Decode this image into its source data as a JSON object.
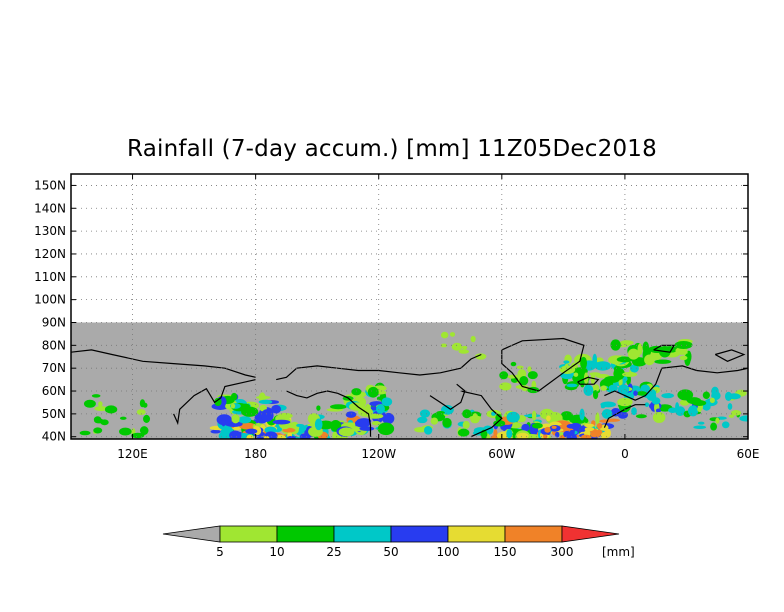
{
  "title": "Rainfall (7-day accum.) [mm] 11Z05Dec2018",
  "map": {
    "projection": "equirectangular",
    "lon_range": [
      90,
      420
    ],
    "lat_range": [
      39,
      155
    ],
    "data_lat_max": 90,
    "land_color": "#aaaaaa",
    "ocean_color": "#aaaaaa",
    "coastline_color": "#000000",
    "grid": true,
    "grid_style": "dotted",
    "lat_ticks": [
      {
        "value": 150,
        "label": "150N"
      },
      {
        "value": 140,
        "label": "140N"
      },
      {
        "value": 130,
        "label": "130N"
      },
      {
        "value": 120,
        "label": "120N"
      },
      {
        "value": 110,
        "label": "110N"
      },
      {
        "value": 100,
        "label": "100N"
      },
      {
        "value": 90,
        "label": "90N"
      },
      {
        "value": 80,
        "label": "80N"
      },
      {
        "value": 70,
        "label": "70N"
      },
      {
        "value": 60,
        "label": "60N"
      },
      {
        "value": 50,
        "label": "50N"
      },
      {
        "value": 40,
        "label": "40N"
      }
    ],
    "lon_ticks": [
      {
        "value": 120,
        "label": "120E"
      },
      {
        "value": 180,
        "label": "180"
      },
      {
        "value": 240,
        "label": "120W"
      },
      {
        "value": 300,
        "label": "60W"
      },
      {
        "value": 360,
        "label": "0"
      },
      {
        "value": 420,
        "label": "60E"
      }
    ]
  },
  "colorbar": {
    "unit": "[mm]",
    "low_color": "#aaaaaa",
    "high_color": "#f03232",
    "bins": [
      {
        "color": "#a0e632"
      },
      {
        "color": "#00c800"
      },
      {
        "color": "#00c8c8"
      },
      {
        "color": "#283cf0"
      },
      {
        "color": "#e6dc32"
      },
      {
        "color": "#f08228"
      }
    ],
    "labels": [
      "5",
      "10",
      "25",
      "50",
      "100",
      "150",
      "300"
    ]
  }
}
